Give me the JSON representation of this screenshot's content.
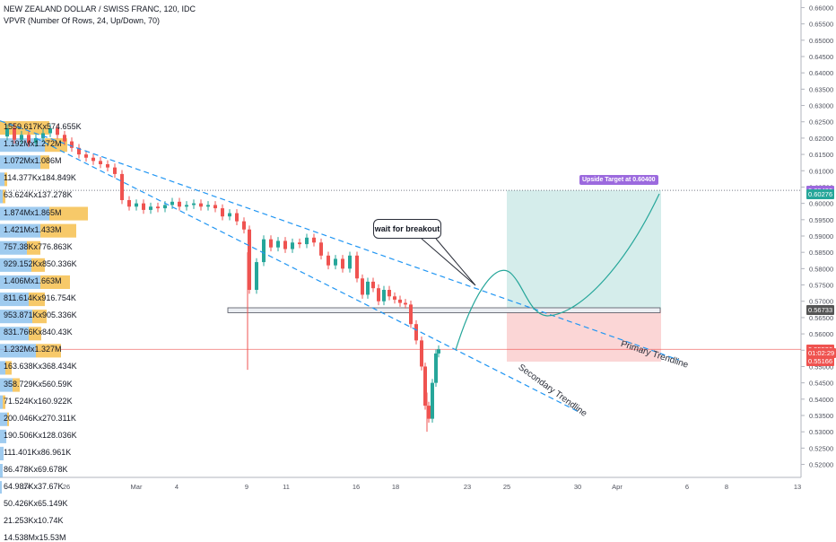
{
  "header": {
    "symbol_line": "NEW ZEALAND DOLLAR / SWISS FRANC, 120, IDC",
    "indicator_line": "VPVR (Number Of Rows, 24, Up/Down, 70)"
  },
  "colors": {
    "up_candle": "#26a69a",
    "down_candle": "#ef5350",
    "trendline": "#2196f3",
    "profit_zone": "#b2dfdb",
    "loss_zone": "#f8bbbb",
    "vp_up": "#7fb9ea",
    "vp_down": "#f6c04f",
    "target_badge": "#9c6ade",
    "current_price_tag": "#ef5350",
    "projection_curve": "#26a69a"
  },
  "callout": {
    "text": "wait for breakout"
  },
  "target_label": "Upside Target at 0.60400",
  "trendlines": {
    "primary": "Primary Trendline",
    "secondary": "Secondary Trendline"
  },
  "volume_profile_rows": [
    "1559.617Kx574.655K",
    "1.192Mx1.272M",
    "1.072Mx1.086M",
    "114.377Kx184.849K",
    "63.624Kx137.278K",
    "1.874Mx1.865M",
    "1.421Mx1.433M",
    "757.38Kx776.863K",
    "929.152Kx850.336K",
    "1.406Mx1.663M",
    "811.614Kx916.754K",
    "953.871Kx905.336K",
    "831.766Kx840.43K",
    "1.232Mx1.327M",
    "163.638Kx368.434K",
    "358.729Kx560.59K",
    "71.524Kx160.922K",
    "200.046Kx270.311K",
    "190.506Kx128.036K",
    "111.401Kx86.961K",
    "86.478Kx69.678K",
    "64.987Kx37.67K",
    "50.426Kx65.149K",
    "21.253Kx10.74K",
    "14.538Mx15.53M"
  ],
  "chart_data": {
    "type": "candlestick",
    "title": "NEW ZEALAND DOLLAR / SWISS FRANC, 120, IDC",
    "y_axis": {
      "ticks": [
        "0.66000",
        "0.65500",
        "0.65000",
        "0.64500",
        "0.64000",
        "0.63500",
        "0.63000",
        "0.62500",
        "0.62000",
        "0.61500",
        "0.61000",
        "0.60500",
        "0.60000",
        "0.59500",
        "0.59000",
        "0.58500",
        "0.58000",
        "0.57500",
        "0.57000",
        "0.56500",
        "0.56000",
        "0.55500",
        "0.55000",
        "0.54500",
        "0.54000",
        "0.53500",
        "0.53000",
        "0.52500",
        "0.52000"
      ],
      "ylim": [
        0.5185,
        0.6615
      ]
    },
    "x_axis": {
      "ticks": [
        "24",
        "26",
        "Mar",
        "4",
        "9",
        "11",
        "16",
        "18",
        "23",
        "25",
        "30",
        "Apr",
        "6",
        "8",
        "13"
      ]
    },
    "price_tags": [
      {
        "label": "0.60400",
        "value": 0.604,
        "color": "#9c6ade"
      },
      {
        "label": "0.60276",
        "value": 0.60276,
        "color": "#26a69a"
      },
      {
        "label": "0.56733",
        "value": 0.56733,
        "color": "#555555"
      },
      {
        "label": "0.55526",
        "value": 0.55526,
        "color": "#ef5350"
      },
      {
        "label": "01:02:29",
        "value": 0.5542,
        "color": "#ef5350"
      },
      {
        "label": "0.55166",
        "value": 0.55166,
        "color": "#ef5350"
      }
    ],
    "levels": {
      "target": 0.604,
      "support_box": [
        0.5665,
        0.568
      ],
      "current": 0.55526
    },
    "price_path": [
      [
        0,
        0.6205
      ],
      [
        8,
        0.623
      ],
      [
        16,
        0.6195
      ],
      [
        24,
        0.621
      ],
      [
        32,
        0.6185
      ],
      [
        40,
        0.62
      ],
      [
        48,
        0.6215
      ],
      [
        56,
        0.623
      ],
      [
        64,
        0.621
      ],
      [
        72,
        0.619
      ],
      [
        80,
        0.617
      ],
      [
        88,
        0.615
      ],
      [
        96,
        0.614
      ],
      [
        104,
        0.613
      ],
      [
        112,
        0.612
      ],
      [
        120,
        0.611
      ],
      [
        128,
        0.609
      ],
      [
        136,
        0.601
      ],
      [
        144,
        0.599
      ],
      [
        152,
        0.6
      ],
      [
        160,
        0.598
      ],
      [
        168,
        0.599
      ],
      [
        176,
        0.5985
      ],
      [
        184,
        0.5995
      ],
      [
        192,
        0.6005
      ],
      [
        200,
        0.599
      ],
      [
        208,
        0.5995
      ],
      [
        216,
        0.6
      ],
      [
        224,
        0.599
      ],
      [
        232,
        0.5995
      ],
      [
        240,
        0.5985
      ],
      [
        248,
        0.596
      ],
      [
        256,
        0.597
      ],
      [
        264,
        0.5945
      ],
      [
        272,
        0.592
      ],
      [
        278,
        0.5735
      ],
      [
        286,
        0.582
      ],
      [
        294,
        0.589
      ],
      [
        302,
        0.5865
      ],
      [
        310,
        0.5885
      ],
      [
        318,
        0.586
      ],
      [
        326,
        0.588
      ],
      [
        334,
        0.5875
      ],
      [
        342,
        0.5895
      ],
      [
        350,
        0.588
      ],
      [
        358,
        0.584
      ],
      [
        366,
        0.581
      ],
      [
        374,
        0.583
      ],
      [
        382,
        0.58
      ],
      [
        390,
        0.584
      ],
      [
        398,
        0.577
      ],
      [
        404,
        0.572
      ],
      [
        410,
        0.576
      ],
      [
        416,
        0.574
      ],
      [
        422,
        0.57
      ],
      [
        428,
        0.5735
      ],
      [
        434,
        0.5715
      ],
      [
        440,
        0.5705
      ],
      [
        446,
        0.5695
      ],
      [
        452,
        0.569
      ],
      [
        458,
        0.563
      ],
      [
        464,
        0.558
      ],
      [
        470,
        0.55
      ],
      [
        474,
        0.538
      ],
      [
        478,
        0.534
      ],
      [
        482,
        0.545
      ],
      [
        486,
        0.554
      ],
      [
        489,
        0.5553
      ]
    ],
    "vp_bars_up_down": [
      [
        0.0,
        0.55
      ],
      [
        0.5,
        0.75
      ],
      [
        0.45,
        0.55
      ],
      [
        0.05,
        0.08
      ],
      [
        0.03,
        0.06
      ],
      [
        0.55,
        0.98
      ],
      [
        0.45,
        0.85
      ],
      [
        0.3,
        0.45
      ],
      [
        0.35,
        0.5
      ],
      [
        0.45,
        0.78
      ],
      [
        0.32,
        0.5
      ],
      [
        0.36,
        0.52
      ],
      [
        0.32,
        0.46
      ],
      [
        0.4,
        0.68
      ],
      [
        0.06,
        0.13
      ],
      [
        0.14,
        0.22
      ],
      [
        0.03,
        0.06
      ],
      [
        0.08,
        0.1
      ],
      [
        0.07,
        0.05
      ],
      [
        0.04,
        0.03
      ],
      [
        0.03,
        0.03
      ],
      [
        0.02,
        0.02
      ],
      [
        0.02,
        0.02
      ],
      [
        0.01,
        0.01
      ],
      [
        0.02,
        0.02
      ]
    ]
  }
}
